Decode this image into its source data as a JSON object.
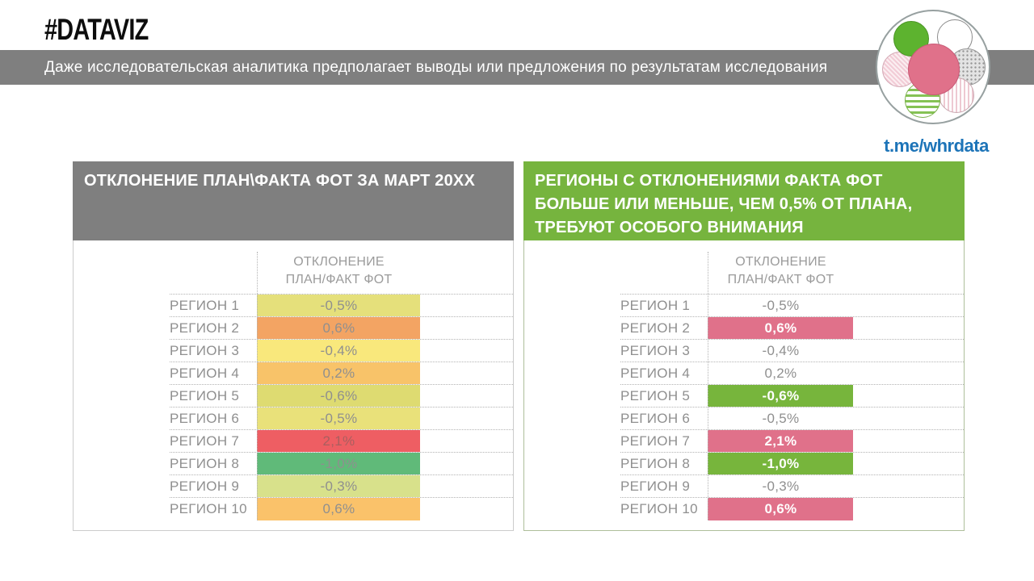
{
  "header": {
    "hashtag": "#DATAVIZ",
    "subtitle": "Даже исследовательская аналитика предполагает выводы или предложения по результатам исследования",
    "logo_link": "t.me/whrdata"
  },
  "colors": {
    "gray_bar": "#7f7f7f",
    "green_header": "#76b43e",
    "highlight_pink": "#e0718a",
    "highlight_green": "#77b53c",
    "link_blue": "#1d74b8"
  },
  "left_table": {
    "title": "ОТКЛОНЕНИЕ ПЛАН\\ФАКТА ФОТ ЗА МАРТ 20XX",
    "column_header": [
      "ОТКЛОНЕНИЕ",
      "ПЛАН/ФАКТ ФОТ"
    ],
    "rows": [
      {
        "region": "РЕГИОН 1",
        "value": "-0,5%",
        "bg": "#e5e07b",
        "color": "#8f8f8f",
        "bold": false
      },
      {
        "region": "РЕГИОН 2",
        "value": "0,6%",
        "bg": "#f3a463",
        "color": "#8f8f8f",
        "bold": false
      },
      {
        "region": "РЕГИОН 3",
        "value": "-0,4%",
        "bg": "#f9e87c",
        "color": "#8f8f8f",
        "bold": false
      },
      {
        "region": "РЕГИОН 4",
        "value": "0,2%",
        "bg": "#f8c369",
        "color": "#8f8f8f",
        "bold": false
      },
      {
        "region": "РЕГИОН 5",
        "value": "-0,6%",
        "bg": "#dedb71",
        "color": "#8f8f8f",
        "bold": false
      },
      {
        "region": "РЕГИОН 6",
        "value": "-0,5%",
        "bg": "#e9e17a",
        "color": "#8f8f8f",
        "bold": false
      },
      {
        "region": "РЕГИОН 7",
        "value": "2,1%",
        "bg": "#ee5e63",
        "color": "#a95f5f",
        "bold": false
      },
      {
        "region": "РЕГИОН 8",
        "value": "-1,0%",
        "bg": "#60ba79",
        "color": "#8f8f8f",
        "bold": false
      },
      {
        "region": "РЕГИОН 9",
        "value": "-0,3%",
        "bg": "#d8e18b",
        "color": "#8f8f8f",
        "bold": false
      },
      {
        "region": "РЕГИОН 10",
        "value": "0,6%",
        "bg": "#fac26a",
        "color": "#8f8f8f",
        "bold": false
      }
    ]
  },
  "right_table": {
    "title_lines": [
      "РЕГИОНЫ С ОТКЛОНЕНИЯМИ ФАКТА ФОТ",
      "БОЛЬШЕ ИЛИ МЕНЬШЕ, ЧЕМ 0,5% ОТ ПЛАНА,",
      "ТРЕБУЮТ ОСОБОГО ВНИМАНИЯ"
    ],
    "column_header": [
      "ОТКЛОНЕНИЕ",
      "ПЛАН/ФАКТ ФОТ"
    ],
    "rows": [
      {
        "region": "РЕГИОН 1",
        "value": "-0,5%",
        "bg": "",
        "color": "#8f8f8f",
        "bold": false
      },
      {
        "region": "РЕГИОН 2",
        "value": "0,6%",
        "bg": "#e0718a",
        "color": "#ffffff",
        "bold": true
      },
      {
        "region": "РЕГИОН 3",
        "value": "-0,4%",
        "bg": "",
        "color": "#8f8f8f",
        "bold": false
      },
      {
        "region": "РЕГИОН 4",
        "value": "0,2%",
        "bg": "",
        "color": "#8f8f8f",
        "bold": false
      },
      {
        "region": "РЕГИОН 5",
        "value": "-0,6%",
        "bg": "#77b53c",
        "color": "#ffffff",
        "bold": true
      },
      {
        "region": "РЕГИОН 6",
        "value": "-0,5%",
        "bg": "",
        "color": "#8f8f8f",
        "bold": false
      },
      {
        "region": "РЕГИОН 7",
        "value": "2,1%",
        "bg": "#e0718a",
        "color": "#ffffff",
        "bold": true
      },
      {
        "region": "РЕГИОН 8",
        "value": "-1,0%",
        "bg": "#77b53c",
        "color": "#ffffff",
        "bold": true
      },
      {
        "region": "РЕГИОН 9",
        "value": "-0,3%",
        "bg": "",
        "color": "#8f8f8f",
        "bold": false
      },
      {
        "region": "РЕГИОН 10",
        "value": "0,6%",
        "bg": "#e0718a",
        "color": "#ffffff",
        "bold": true
      }
    ]
  },
  "chart_data": [
    {
      "type": "table",
      "title": "ОТКЛОНЕНИЕ ПЛАН\\ФАКТА ФОТ ЗА МАРТ 20XX",
      "value_column": "ОТКЛОНЕНИЕ ПЛАН/ФАКТ ФОТ",
      "categories": [
        "РЕГИОН 1",
        "РЕГИОН 2",
        "РЕГИОН 3",
        "РЕГИОН 4",
        "РЕГИОН 5",
        "РЕГИОН 6",
        "РЕГИОН 7",
        "РЕГИОН 8",
        "РЕГИОН 9",
        "РЕГИОН 10"
      ],
      "values_pct": [
        -0.5,
        0.6,
        -0.4,
        0.2,
        -0.6,
        -0.5,
        2.1,
        -1.0,
        -0.3,
        0.6
      ],
      "style": "red-yellow-green heatmap on every value cell"
    },
    {
      "type": "table",
      "title": "РЕГИОНЫ С ОТКЛОНЕНИЯМИ ФАКТА ФОТ БОЛЬШЕ ИЛИ МЕНЬШЕ, ЧЕМ 0,5% ОТ ПЛАНА, ТРЕБУЮТ ОСОБОГО ВНИМАНИЯ",
      "value_column": "ОТКЛОНЕНИЕ ПЛАН/ФАКТ ФОТ",
      "categories": [
        "РЕГИОН 1",
        "РЕГИОН 2",
        "РЕГИОН 3",
        "РЕГИОН 4",
        "РЕГИОН 5",
        "РЕГИОН 6",
        "РЕГИОН 7",
        "РЕГИОН 8",
        "РЕГИОН 9",
        "РЕГИОН 10"
      ],
      "values_pct": [
        -0.5,
        0.6,
        -0.4,
        0.2,
        -0.6,
        -0.5,
        2.1,
        -1.0,
        -0.3,
        0.6
      ],
      "style": "only |value| > 0.5 highlighted: pink = above plan, green = below plan"
    }
  ]
}
